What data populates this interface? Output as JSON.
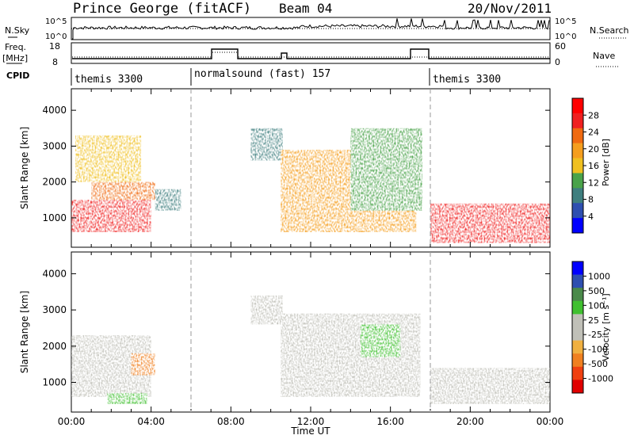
{
  "header": {
    "station": "Prince George (fitACF)",
    "beam": "Beam 04",
    "date": "20/Nov/2011"
  },
  "top_panels": {
    "nsky_label": "N.Sky",
    "nsky_tick_hi": "10^5",
    "nsky_tick_lo": "10^0",
    "nsearch_label": "N.Search",
    "nsearch_tick_hi": "10^5",
    "nsearch_tick_lo": "10^0",
    "freq_label": "Freq.",
    "freq_unit": "[MHz]",
    "freq_tick_hi": "18",
    "freq_tick_lo": "8",
    "nave_label": "Nave",
    "nave_tick_hi": "60",
    "nave_tick_lo": "0",
    "cpid_label": "CPID",
    "cpid_segments": [
      {
        "label": "themis 3300",
        "start_hour": 0
      },
      {
        "label": "normalsound (fast) 157",
        "start_hour": 6
      },
      {
        "label": "themis 3300",
        "start_hour": 18
      }
    ]
  },
  "colors": {
    "power_scale": [
      "#0000ff",
      "#2e4fb0",
      "#3f7f7f",
      "#4aa34a",
      "#f0c020",
      "#f59e1e",
      "#f06a10",
      "#f02020",
      "#ff0000"
    ],
    "velocity_scale": [
      "#e00000",
      "#f04010",
      "#f08020",
      "#f0b040",
      "#c0c0b8",
      "#c0c0b8",
      "#40c030",
      "#4a8a4a",
      "#2e4fb0",
      "#0000ff"
    ]
  },
  "chart_data": [
    {
      "type": "heatmap",
      "title": "Power",
      "xlabel": "Time UT",
      "ylabel": "Slant Range [km]",
      "x_ticks": [
        "00:00",
        "04:00",
        "08:00",
        "12:00",
        "16:00",
        "20:00",
        "00:00"
      ],
      "xlim_hours": [
        0,
        24
      ],
      "ylim": [
        180,
        4600
      ],
      "y_ticks": [
        1000,
        2000,
        3000,
        4000
      ],
      "colorbar": {
        "label": "Power [dB]",
        "ticks": [
          4,
          8,
          12,
          16,
          20,
          24,
          28
        ],
        "range": [
          0,
          32
        ]
      },
      "regions": [
        {
          "hours": [
            0.0,
            4.0
          ],
          "range": [
            600,
            1500
          ],
          "value": 28
        },
        {
          "hours": [
            1.0,
            4.2
          ],
          "range": [
            1500,
            2000
          ],
          "value": 22
        },
        {
          "hours": [
            0.2,
            3.5
          ],
          "range": [
            2000,
            3300
          ],
          "value": 16
        },
        {
          "hours": [
            4.2,
            5.5
          ],
          "range": [
            1200,
            1800
          ],
          "value": 8
        },
        {
          "hours": [
            9.0,
            10.6
          ],
          "range": [
            2600,
            3500
          ],
          "value": 8
        },
        {
          "hours": [
            10.5,
            17.3
          ],
          "range": [
            600,
            2900
          ],
          "value": 20
        },
        {
          "hours": [
            14.0,
            17.6
          ],
          "range": [
            1200,
            3500
          ],
          "value": 14
        },
        {
          "hours": [
            18.0,
            24.0
          ],
          "range": [
            300,
            1400
          ],
          "value": 28
        }
      ]
    },
    {
      "type": "heatmap",
      "title": "Velocity",
      "xlabel": "Time UT",
      "ylabel": "Slant Range [km]",
      "x_ticks": [
        "00:00",
        "04:00",
        "08:00",
        "12:00",
        "16:00",
        "20:00",
        "00:00"
      ],
      "xlim_hours": [
        0,
        24
      ],
      "ylim": [
        180,
        4600
      ],
      "y_ticks": [
        1000,
        2000,
        3000,
        4000
      ],
      "colorbar": {
        "label": "Velocity [m s⁻¹]",
        "ticks": [
          1000,
          500,
          100,
          25,
          -25,
          -100,
          -500,
          -1000
        ]
      },
      "regions": [
        {
          "hours": [
            0.0,
            4.0
          ],
          "range": [
            600,
            2300
          ],
          "value": 0
        },
        {
          "hours": [
            3.0,
            4.2
          ],
          "range": [
            1200,
            1800
          ],
          "value": -100
        },
        {
          "hours": [
            1.8,
            3.8
          ],
          "range": [
            400,
            700
          ],
          "value": 100
        },
        {
          "hours": [
            9.0,
            10.6
          ],
          "range": [
            2600,
            3400
          ],
          "value": 0
        },
        {
          "hours": [
            10.5,
            17.5
          ],
          "range": [
            600,
            2900
          ],
          "value": 0
        },
        {
          "hours": [
            14.5,
            16.5
          ],
          "range": [
            1700,
            2600
          ],
          "value": 100
        },
        {
          "hours": [
            18.0,
            24.0
          ],
          "range": [
            400,
            1400
          ],
          "value": 0
        }
      ]
    }
  ],
  "axis": {
    "xlabel": "Time UT"
  }
}
